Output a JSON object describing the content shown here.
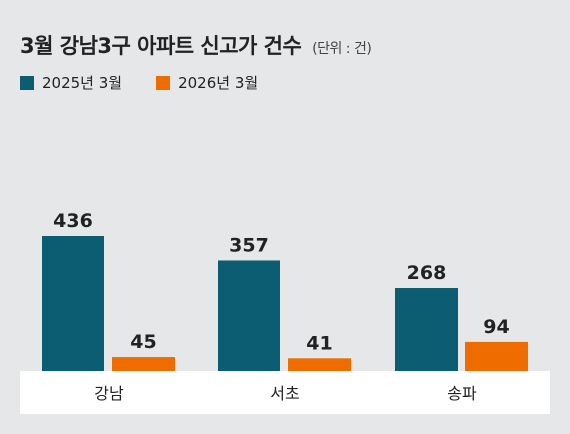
{
  "title": "3월 강남3구 아파트 신고가 건수",
  "unit": "(단위 : 건)",
  "colors": {
    "s2025": "#0c5c72",
    "s2026": "#ef6c00",
    "axis_band": "#ffffff",
    "background": "#e6e7e9"
  },
  "chart_data": {
    "type": "bar",
    "title": "3월 강남3구 아파트 신고가 건수",
    "unit": "(단위 : 건)",
    "categories": [
      "강남",
      "서초",
      "송파"
    ],
    "series": [
      {
        "name": "2025년 3월",
        "values": [
          436,
          357,
          268
        ]
      },
      {
        "name": "2026년 3월",
        "values": [
          45,
          41,
          94
        ]
      }
    ],
    "ylim": [
      0,
      500
    ],
    "grid": false,
    "legend": "top-left",
    "value_labels": [
      [
        "436",
        "357",
        "268"
      ],
      [
        "45",
        "41",
        "94"
      ]
    ]
  }
}
